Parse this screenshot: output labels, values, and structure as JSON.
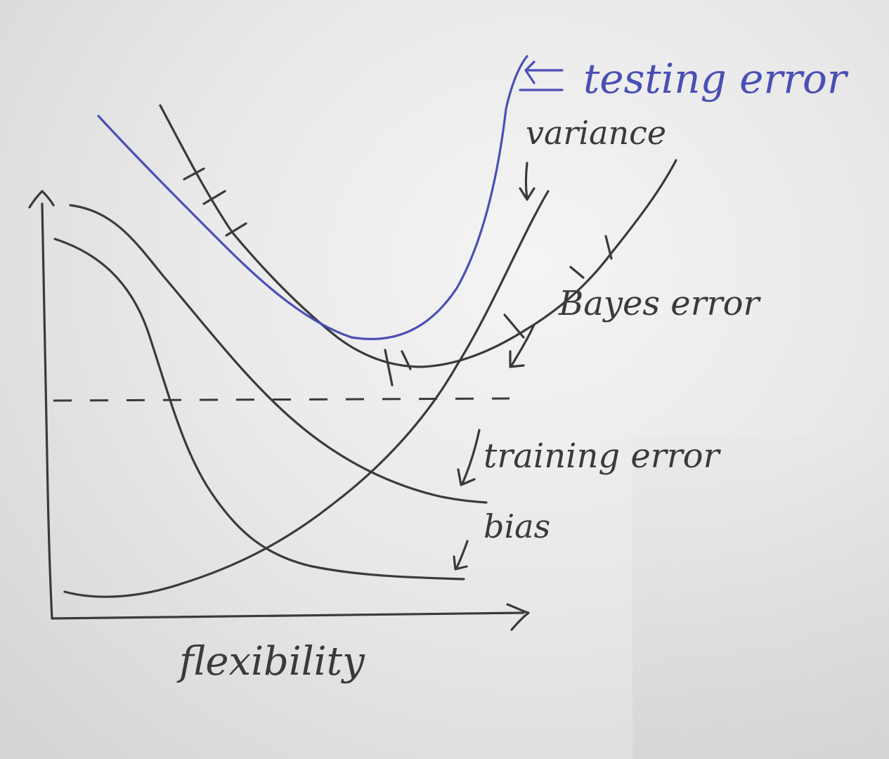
{
  "labels": {
    "testing_error": "testing error",
    "variance": "variance",
    "bayes_error": "Bayes error",
    "training_error": "training error",
    "bias": "bias",
    "x_axis": "flexibility"
  },
  "colors": {
    "ink": "#3a3a3a",
    "marker_blue": "#4a4fb5",
    "board": "#ececec"
  }
}
